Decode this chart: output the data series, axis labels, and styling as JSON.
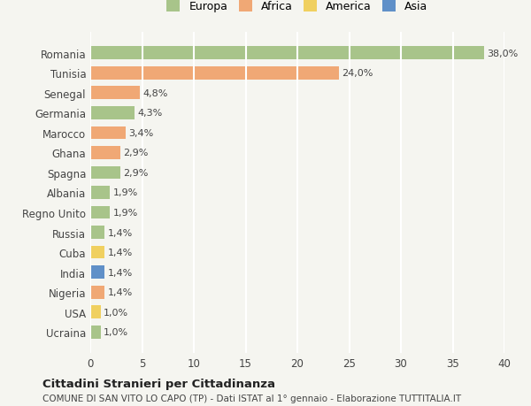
{
  "countries": [
    "Romania",
    "Tunisia",
    "Senegal",
    "Germania",
    "Marocco",
    "Ghana",
    "Spagna",
    "Albania",
    "Regno Unito",
    "Russia",
    "Cuba",
    "India",
    "Nigeria",
    "USA",
    "Ucraina"
  ],
  "values": [
    38.0,
    24.0,
    4.8,
    4.3,
    3.4,
    2.9,
    2.9,
    1.9,
    1.9,
    1.4,
    1.4,
    1.4,
    1.4,
    1.0,
    1.0
  ],
  "labels": [
    "38,0%",
    "24,0%",
    "4,8%",
    "4,3%",
    "3,4%",
    "2,9%",
    "2,9%",
    "1,9%",
    "1,9%",
    "1,4%",
    "1,4%",
    "1,4%",
    "1,4%",
    "1,0%",
    "1,0%"
  ],
  "continents": [
    "Europa",
    "Africa",
    "Africa",
    "Europa",
    "Africa",
    "Africa",
    "Europa",
    "Europa",
    "Europa",
    "Europa",
    "America",
    "Asia",
    "Africa",
    "America",
    "Europa"
  ],
  "colors": {
    "Europa": "#a8c48a",
    "Africa": "#f0a875",
    "America": "#f0d060",
    "Asia": "#6090c8"
  },
  "legend_colors": {
    "Europa": "#a8c48a",
    "Africa": "#f0a875",
    "America": "#f0d060",
    "Asia": "#6090c8"
  },
  "title": "Cittadini Stranieri per Cittadinanza",
  "subtitle": "COMUNE DI SAN VITO LO CAPO (TP) - Dati ISTAT al 1° gennaio - Elaborazione TUTTITALIA.IT",
  "xlim": [
    0,
    40
  ],
  "xticks": [
    0,
    5,
    10,
    15,
    20,
    25,
    30,
    35,
    40
  ],
  "background_color": "#f5f5f0",
  "grid_color": "#ffffff",
  "bar_height": 0.65
}
